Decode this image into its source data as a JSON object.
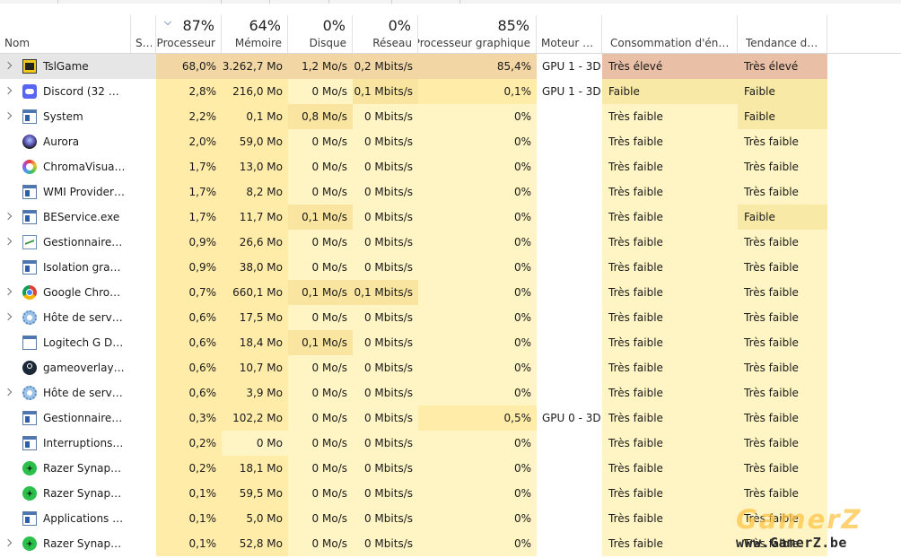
{
  "header": {
    "name_label": "Nom",
    "status_label": "S...",
    "cpu": {
      "percent": "87%",
      "label": "Processeur"
    },
    "memory": {
      "percent": "64%",
      "label": "Mémoire"
    },
    "disk": {
      "percent": "0%",
      "label": "Disque"
    },
    "network": {
      "percent": "0%",
      "label": "Réseau"
    },
    "gpu": {
      "percent": "85%",
      "label": "Processeur graphique"
    },
    "gpu_engine_label": "Moteur d...",
    "power_label": "Consommation d'énergie",
    "power_trend_label": "Tendance de ..."
  },
  "colors": {
    "heat_1": "#fff4c4",
    "heat_2": "#ffeca8",
    "heat_3": "#f9e5a0",
    "heat_row_cpu": "#f2d7a4",
    "selected_row": "#e6e6e6",
    "power_very_high": "#e9bfa6",
    "power_low": "#f9e9a6",
    "power_very_low": "#fff4c4"
  },
  "processes": [
    {
      "name": "TslGame",
      "icon": "pubg-icon",
      "expandable": true,
      "cpu": "68,0%",
      "memory": "3.262,7 Mo",
      "disk": "1,2 Mo/s",
      "network": "0,2 Mbits/s",
      "gpu": "85,4%",
      "gpu_engine": "GPU 1 - 3D",
      "power": "Très élevé",
      "power_trend": "Très élevé"
    },
    {
      "name": "Discord (32 bits...",
      "icon": "discord-icon",
      "expandable": true,
      "cpu": "2,8%",
      "memory": "216,0 Mo",
      "disk": "0 Mo/s",
      "network": "0,1 Mbits/s",
      "gpu": "0,1%",
      "gpu_engine": "GPU 1 - 3D",
      "power": "Faible",
      "power_trend": "Faible"
    },
    {
      "name": "System",
      "icon": "system-window-icon",
      "expandable": true,
      "cpu": "2,2%",
      "memory": "0,1 Mo",
      "disk": "0,8 Mo/s",
      "network": "0 Mbits/s",
      "gpu": "0%",
      "gpu_engine": "",
      "power": "Très faible",
      "power_trend": "Faible"
    },
    {
      "name": "Aurora",
      "icon": "aurora-icon",
      "expandable": false,
      "cpu": "2,0%",
      "memory": "59,0 Mo",
      "disk": "0 Mo/s",
      "network": "0 Mbits/s",
      "gpu": "0%",
      "gpu_engine": "",
      "power": "Très faible",
      "power_trend": "Très faible"
    },
    {
      "name": "ChromaVisuali...",
      "icon": "chroma-icon",
      "expandable": false,
      "cpu": "1,7%",
      "memory": "13,0 Mo",
      "disk": "0 Mo/s",
      "network": "0 Mbits/s",
      "gpu": "0%",
      "gpu_engine": "",
      "power": "Très faible",
      "power_trend": "Très faible"
    },
    {
      "name": "WMI Provider ...",
      "icon": "wmi-window-icon",
      "expandable": false,
      "cpu": "1,7%",
      "memory": "8,2 Mo",
      "disk": "0 Mo/s",
      "network": "0 Mbits/s",
      "gpu": "0%",
      "gpu_engine": "",
      "power": "Très faible",
      "power_trend": "Très faible"
    },
    {
      "name": "BEService.exe",
      "icon": "beservice-window-icon",
      "expandable": true,
      "cpu": "1,7%",
      "memory": "11,7 Mo",
      "disk": "0,1 Mo/s",
      "network": "0 Mbits/s",
      "gpu": "0%",
      "gpu_engine": "",
      "power": "Très faible",
      "power_trend": "Faible"
    },
    {
      "name": "Gestionnaire d...",
      "icon": "task-manager-icon",
      "expandable": true,
      "cpu": "0,9%",
      "memory": "26,6 Mo",
      "disk": "0 Mo/s",
      "network": "0 Mbits/s",
      "gpu": "0%",
      "gpu_engine": "",
      "power": "Très faible",
      "power_trend": "Très faible"
    },
    {
      "name": "Isolation graph...",
      "icon": "window-icon",
      "expandable": false,
      "cpu": "0,9%",
      "memory": "38,0 Mo",
      "disk": "0 Mo/s",
      "network": "0 Mbits/s",
      "gpu": "0%",
      "gpu_engine": "",
      "power": "Très faible",
      "power_trend": "Très faible"
    },
    {
      "name": "Google Chrom...",
      "icon": "chrome-icon",
      "expandable": true,
      "cpu": "0,7%",
      "memory": "660,1 Mo",
      "disk": "0,1 Mo/s",
      "network": "0,1 Mbits/s",
      "gpu": "0%",
      "gpu_engine": "",
      "power": "Très faible",
      "power_trend": "Très faible"
    },
    {
      "name": "Hôte de service...",
      "icon": "gear-icon",
      "expandable": true,
      "cpu": "0,6%",
      "memory": "17,5 Mo",
      "disk": "0 Mo/s",
      "network": "0 Mbits/s",
      "gpu": "0%",
      "gpu_engine": "",
      "power": "Très faible",
      "power_trend": "Très faible"
    },
    {
      "name": "Logitech G Dis...",
      "icon": "logitech-window-icon",
      "expandable": false,
      "cpu": "0,6%",
      "memory": "18,4 Mo",
      "disk": "0,1 Mo/s",
      "network": "0 Mbits/s",
      "gpu": "0%",
      "gpu_engine": "",
      "power": "Très faible",
      "power_trend": "Très faible"
    },
    {
      "name": "gameoverlayui....",
      "icon": "steam-icon",
      "expandable": false,
      "cpu": "0,6%",
      "memory": "10,7 Mo",
      "disk": "0 Mo/s",
      "network": "0 Mbits/s",
      "gpu": "0%",
      "gpu_engine": "",
      "power": "Très faible",
      "power_trend": "Très faible"
    },
    {
      "name": "Hôte de service...",
      "icon": "gear-icon",
      "expandable": true,
      "cpu": "0,6%",
      "memory": "3,9 Mo",
      "disk": "0 Mo/s",
      "network": "0 Mbits/s",
      "gpu": "0%",
      "gpu_engine": "",
      "power": "Très faible",
      "power_trend": "Très faible"
    },
    {
      "name": "Gestionnaire d...",
      "icon": "window-icon",
      "expandable": false,
      "cpu": "0,3%",
      "memory": "102,2 Mo",
      "disk": "0 Mo/s",
      "network": "0 Mbits/s",
      "gpu": "0,5%",
      "gpu_engine": "GPU 0 - 3D",
      "power": "Très faible",
      "power_trend": "Très faible"
    },
    {
      "name": "Interruptions s...",
      "icon": "window-icon",
      "expandable": false,
      "cpu": "0,2%",
      "memory": "0 Mo",
      "disk": "0 Mo/s",
      "network": "0 Mbits/s",
      "gpu": "0%",
      "gpu_engine": "",
      "power": "Très faible",
      "power_trend": "Très faible"
    },
    {
      "name": "Razer Synapse ...",
      "icon": "razer-icon",
      "expandable": false,
      "cpu": "0,2%",
      "memory": "18,1 Mo",
      "disk": "0 Mo/s",
      "network": "0 Mbits/s",
      "gpu": "0%",
      "gpu_engine": "",
      "power": "Très faible",
      "power_trend": "Très faible"
    },
    {
      "name": "Razer Synapse ...",
      "icon": "razer-icon",
      "expandable": false,
      "cpu": "0,1%",
      "memory": "59,5 Mo",
      "disk": "0 Mo/s",
      "network": "0 Mbits/s",
      "gpu": "0%",
      "gpu_engine": "",
      "power": "Très faible",
      "power_trend": "Très faible"
    },
    {
      "name": "Applications Se...",
      "icon": "window-icon",
      "expandable": false,
      "cpu": "0,1%",
      "memory": "5,0 Mo",
      "disk": "0 Mo/s",
      "network": "0 Mbits/s",
      "gpu": "0%",
      "gpu_engine": "",
      "power": "Très faible",
      "power_trend": "Très faible"
    },
    {
      "name": "Razer Synapse ...",
      "icon": "razer-icon",
      "expandable": true,
      "cpu": "0,1%",
      "memory": "52,8 Mo",
      "disk": "0 Mo/s",
      "network": "0 Mbits/s",
      "gpu": "0%",
      "gpu_engine": "",
      "power": "Très faible",
      "power_trend": "Très faible"
    }
  ],
  "watermark": {
    "logo": "GamerZ",
    "url": "www.GamerZ.be"
  }
}
